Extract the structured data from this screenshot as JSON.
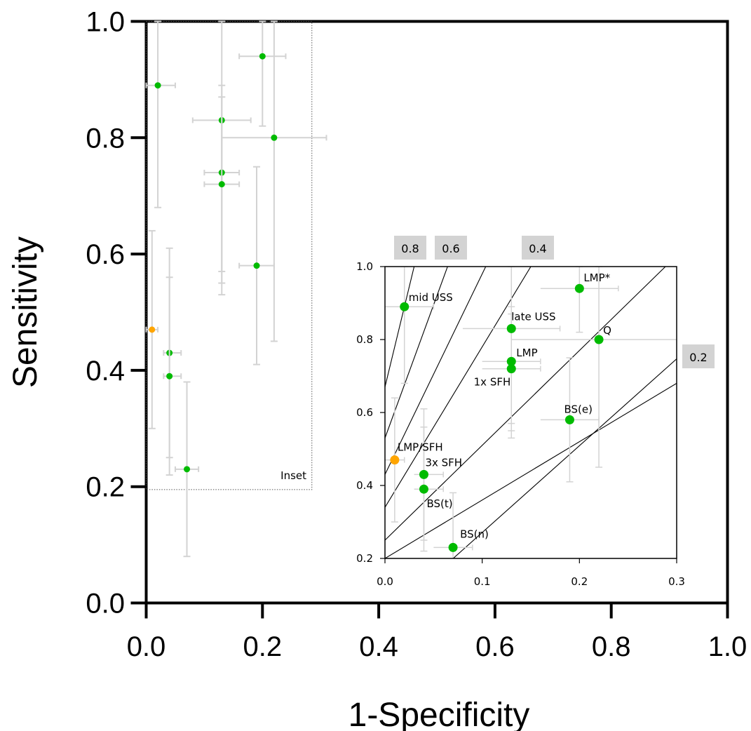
{
  "chart_data": [
    {
      "type": "scatter",
      "xlabel": "1-Specificity",
      "ylabel": "Sensitivity",
      "xlim": [
        0,
        1
      ],
      "ylim": [
        0,
        1
      ],
      "xticks": [
        "0.0",
        "0.2",
        "0.4",
        "0.6",
        "0.8",
        "1.0"
      ],
      "yticks": [
        "0.0",
        "0.2",
        "0.4",
        "0.6",
        "0.8",
        "1.0"
      ],
      "inset_box_label": "Inset",
      "inset_box": {
        "x": [
          0,
          0.285
        ],
        "y": [
          0.195,
          1
        ]
      },
      "colors": {
        "default": "#00bb00",
        "highlight": "#ffa500",
        "error_bar": "#d3d3d3"
      },
      "points": [
        {
          "x": 0.02,
          "y": 0.89,
          "xerr": [
            0.0,
            0.05
          ],
          "yerr": [
            0.68,
            1.0
          ],
          "color": "green"
        },
        {
          "x": 0.2,
          "y": 0.94,
          "xerr": [
            0.16,
            0.24
          ],
          "yerr": [
            0.82,
            1.0
          ],
          "color": "green"
        },
        {
          "x": 0.13,
          "y": 0.83,
          "xerr": [
            0.08,
            0.18
          ],
          "yerr": [
            0.53,
            1.0
          ],
          "color": "green"
        },
        {
          "x": 0.22,
          "y": 0.8,
          "xerr": [
            0.13,
            0.31
          ],
          "yerr": [
            0.45,
            1.0
          ],
          "color": "green"
        },
        {
          "x": 0.13,
          "y": 0.74,
          "xerr": [
            0.1,
            0.16
          ],
          "yerr": [
            0.57,
            0.89
          ],
          "color": "green"
        },
        {
          "x": 0.13,
          "y": 0.72,
          "xerr": [
            0.1,
            0.16
          ],
          "yerr": [
            0.55,
            0.87
          ],
          "color": "green"
        },
        {
          "x": 0.19,
          "y": 0.58,
          "xerr": [
            0.16,
            0.22
          ],
          "yerr": [
            0.41,
            0.75
          ],
          "color": "green"
        },
        {
          "x": 0.01,
          "y": 0.47,
          "xerr": [
            0.0,
            0.02
          ],
          "yerr": [
            0.3,
            0.64
          ],
          "color": "orange"
        },
        {
          "x": 0.04,
          "y": 0.43,
          "xerr": [
            0.03,
            0.06
          ],
          "yerr": [
            0.25,
            0.61
          ],
          "color": "green"
        },
        {
          "x": 0.04,
          "y": 0.39,
          "xerr": [
            0.03,
            0.06
          ],
          "yerr": [
            0.22,
            0.56
          ],
          "color": "green"
        },
        {
          "x": 0.07,
          "y": 0.23,
          "xerr": [
            0.05,
            0.09
          ],
          "yerr": [
            0.08,
            0.38
          ],
          "color": "green"
        }
      ]
    },
    {
      "type": "scatter",
      "inset": true,
      "xlim": [
        0,
        0.3
      ],
      "ylim": [
        0.2,
        1.0
      ],
      "xticks": [
        "0.0",
        "0.1",
        "0.2",
        "0.3"
      ],
      "yticks": [
        "0.2",
        "0.4",
        "0.6",
        "0.8",
        "1.0"
      ],
      "reference_line_labels": [
        "0.8",
        "0.6",
        "0.4",
        "0.2"
      ],
      "reference_lines": [
        {
          "intercept": 0.67,
          "slope": 11.0
        },
        {
          "intercept": 0.53,
          "slope": 7.3
        },
        {
          "intercept": 0.43,
          "slope": 5.5
        },
        {
          "intercept": 0.34,
          "slope": 4.4
        },
        {
          "intercept": 0.25,
          "slope": 2.6
        },
        {
          "intercept": 0.2,
          "slope": 1.6
        },
        {
          "intercept": 0.033,
          "slope": 2.38
        }
      ],
      "points": [
        {
          "label": "mid USS",
          "x": 0.02,
          "y": 0.89,
          "xerr": [
            0.0,
            0.05
          ],
          "yerr": [
            0.68,
            1.0
          ],
          "color": "green"
        },
        {
          "label": "LMP*",
          "x": 0.2,
          "y": 0.94,
          "xerr": [
            0.16,
            0.24
          ],
          "yerr": [
            0.82,
            1.0
          ],
          "color": "green"
        },
        {
          "label": "late USS",
          "x": 0.13,
          "y": 0.83,
          "xerr": [
            0.08,
            0.18
          ],
          "yerr": [
            0.53,
            1.0
          ],
          "color": "green"
        },
        {
          "label": "Q",
          "x": 0.22,
          "y": 0.8,
          "xerr": [
            0.13,
            0.31
          ],
          "yerr": [
            0.45,
            1.0
          ],
          "color": "green"
        },
        {
          "label": "LMP",
          "x": 0.13,
          "y": 0.74,
          "xerr": [
            0.1,
            0.16
          ],
          "yerr": [
            0.57,
            0.89
          ],
          "color": "green"
        },
        {
          "label": "1x SFH",
          "x": 0.13,
          "y": 0.72,
          "xerr": [
            0.1,
            0.16
          ],
          "yerr": [
            0.55,
            0.87
          ],
          "color": "green"
        },
        {
          "label": "BS(e)",
          "x": 0.19,
          "y": 0.58,
          "xerr": [
            0.16,
            0.22
          ],
          "yerr": [
            0.41,
            0.75
          ],
          "color": "green"
        },
        {
          "label": "LMP/SFH",
          "x": 0.01,
          "y": 0.47,
          "xerr": [
            0.0,
            0.02
          ],
          "yerr": [
            0.3,
            0.64
          ],
          "color": "orange"
        },
        {
          "label": "3x SFH",
          "x": 0.04,
          "y": 0.43,
          "xerr": [
            0.03,
            0.06
          ],
          "yerr": [
            0.25,
            0.61
          ],
          "color": "green"
        },
        {
          "label": "BS(t)",
          "x": 0.04,
          "y": 0.39,
          "xerr": [
            0.03,
            0.06
          ],
          "yerr": [
            0.22,
            0.56
          ],
          "color": "green"
        },
        {
          "label": "BS(n)",
          "x": 0.07,
          "y": 0.23,
          "xerr": [
            0.05,
            0.09
          ],
          "yerr": [
            0.08,
            0.38
          ],
          "color": "green"
        }
      ]
    }
  ]
}
